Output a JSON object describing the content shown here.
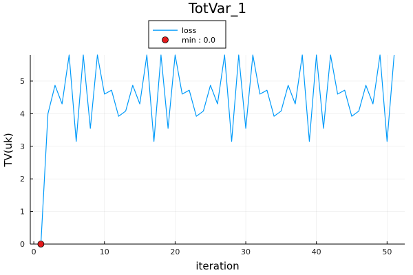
{
  "chart_data": {
    "type": "line",
    "title": "TotVar_1",
    "xlabel": "iteration",
    "ylabel": "TV(uk)",
    "xlim": [
      -0.5,
      52.5
    ],
    "ylim": [
      0,
      5.8
    ],
    "xticks": [
      0,
      10,
      20,
      30,
      40,
      50
    ],
    "yticks": [
      0,
      1,
      2,
      3,
      4,
      5
    ],
    "grid": true,
    "legend_position": "top-center",
    "series": [
      {
        "name": "loss",
        "kind": "line",
        "color": "#009AFA",
        "x": [
          1,
          2,
          3,
          4,
          5,
          6,
          7,
          8,
          9,
          10,
          11,
          12,
          13,
          14,
          15,
          16,
          17,
          18,
          19,
          20,
          21,
          22,
          23,
          24,
          25,
          26,
          27,
          28,
          29,
          30,
          31,
          32,
          33,
          34,
          35,
          36,
          37,
          38,
          39,
          40,
          41,
          42,
          43,
          44,
          45,
          46,
          47,
          48,
          49,
          50,
          51
        ],
        "y": [
          0.0,
          4.0,
          4.87,
          4.3,
          5.8,
          3.15,
          5.8,
          3.55,
          5.8,
          4.6,
          4.72,
          3.92,
          4.08,
          4.87,
          4.3,
          5.8,
          3.15,
          5.8,
          3.55,
          5.8,
          4.6,
          4.72,
          3.92,
          4.08,
          4.87,
          4.3,
          5.8,
          3.15,
          5.8,
          3.55,
          5.8,
          4.6,
          4.72,
          3.92,
          4.08,
          4.87,
          4.3,
          5.8,
          3.15,
          5.8,
          3.55,
          5.8,
          4.6,
          4.72,
          3.92,
          4.08,
          4.87,
          4.3,
          5.8,
          3.15,
          5.8
        ]
      },
      {
        "name": "min : 0.0",
        "kind": "scatter",
        "color": "#E41A1C",
        "x": [
          1
        ],
        "y": [
          0.0
        ]
      }
    ]
  }
}
